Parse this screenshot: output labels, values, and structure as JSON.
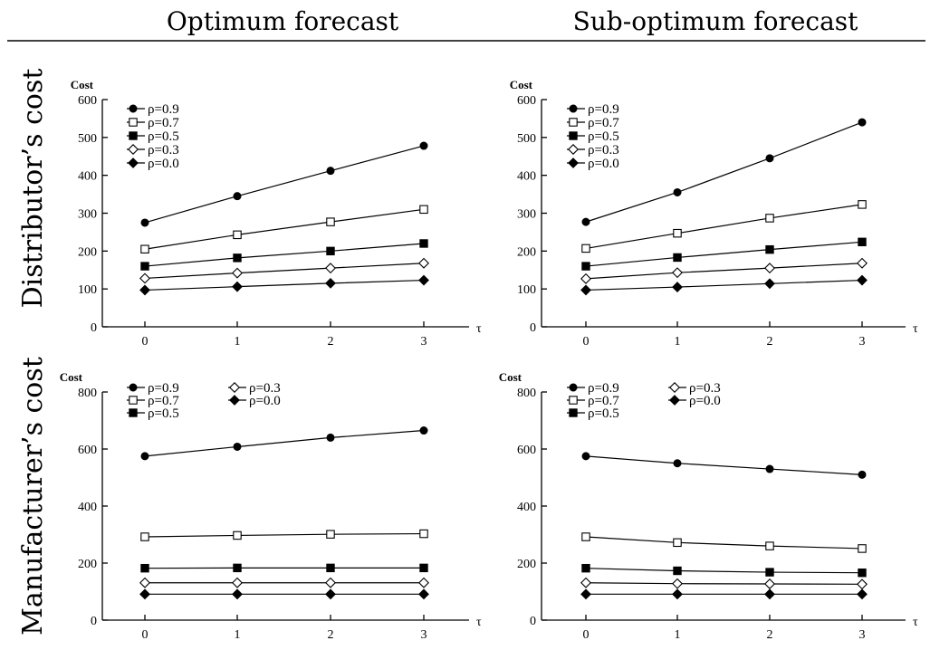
{
  "column_titles": [
    "Optimum forecast",
    "Sub-optimum forecast"
  ],
  "row_titles": [
    "Distributor’s cost",
    "Manufacturer’s cost"
  ],
  "chart_data": [
    {
      "type": "line",
      "panel": "distributor-optimum",
      "ylabel": "Cost",
      "xlabel": "τ",
      "ylim": [
        0,
        600
      ],
      "yticks": [
        0,
        100,
        200,
        300,
        400,
        500,
        600
      ],
      "x": [
        0,
        1,
        2,
        3
      ],
      "legend_placement": "top-left",
      "series": [
        {
          "name": "ρ=0.9",
          "marker": "filled-circle",
          "values": [
            275,
            345,
            412,
            478
          ]
        },
        {
          "name": "ρ=0.7",
          "marker": "open-square",
          "values": [
            205,
            243,
            277,
            310
          ]
        },
        {
          "name": "ρ=0.5",
          "marker": "filled-square",
          "values": [
            160,
            182,
            200,
            220
          ]
        },
        {
          "name": "ρ=0.3",
          "marker": "open-diamond",
          "values": [
            128,
            142,
            155,
            168
          ]
        },
        {
          "name": "ρ=0.0",
          "marker": "filled-diamond",
          "values": [
            97,
            106,
            115,
            123
          ]
        }
      ]
    },
    {
      "type": "line",
      "panel": "distributor-suboptimum",
      "ylabel": "Cost",
      "xlabel": "τ",
      "ylim": [
        0,
        600
      ],
      "yticks": [
        0,
        100,
        200,
        300,
        400,
        500,
        600
      ],
      "x": [
        0,
        1,
        2,
        3
      ],
      "legend_placement": "top-left",
      "series": [
        {
          "name": "ρ=0.9",
          "marker": "filled-circle",
          "values": [
            277,
            355,
            445,
            540
          ]
        },
        {
          "name": "ρ=0.7",
          "marker": "open-square",
          "values": [
            207,
            247,
            287,
            323
          ]
        },
        {
          "name": "ρ=0.5",
          "marker": "filled-square",
          "values": [
            160,
            183,
            204,
            224
          ]
        },
        {
          "name": "ρ=0.3",
          "marker": "open-diamond",
          "values": [
            127,
            143,
            155,
            168
          ]
        },
        {
          "name": "ρ=0.0",
          "marker": "filled-diamond",
          "values": [
            97,
            105,
            114,
            123
          ]
        }
      ]
    },
    {
      "type": "line",
      "panel": "manufacturer-optimum",
      "ylabel": "Cost",
      "xlabel": "τ",
      "ylim": [
        0,
        800
      ],
      "yticks": [
        0,
        200,
        400,
        600,
        800
      ],
      "x": [
        0,
        1,
        2,
        3
      ],
      "legend_placement": "top-left",
      "series": [
        {
          "name": "ρ=0.9",
          "marker": "filled-circle",
          "values": [
            575,
            608,
            640,
            665
          ]
        },
        {
          "name": "ρ=0.7",
          "marker": "open-square",
          "values": [
            292,
            297,
            301,
            303
          ]
        },
        {
          "name": "ρ=0.5",
          "marker": "filled-square",
          "values": [
            182,
            183,
            183,
            183
          ]
        },
        {
          "name": "ρ=0.3",
          "marker": "open-diamond",
          "values": [
            131,
            131,
            131,
            131
          ]
        },
        {
          "name": "ρ=0.0",
          "marker": "filled-diamond",
          "values": [
            91,
            91,
            91,
            91
          ]
        }
      ]
    },
    {
      "type": "line",
      "panel": "manufacturer-suboptimum",
      "ylabel": "Cost",
      "xlabel": "τ",
      "ylim": [
        0,
        800
      ],
      "yticks": [
        0,
        200,
        400,
        600,
        800
      ],
      "x": [
        0,
        1,
        2,
        3
      ],
      "legend_placement": "top-left",
      "series": [
        {
          "name": "ρ=0.9",
          "marker": "filled-circle",
          "values": [
            575,
            550,
            530,
            510
          ]
        },
        {
          "name": "ρ=0.7",
          "marker": "open-square",
          "values": [
            292,
            272,
            260,
            251
          ]
        },
        {
          "name": "ρ=0.5",
          "marker": "filled-square",
          "values": [
            182,
            173,
            168,
            166
          ]
        },
        {
          "name": "ρ=0.3",
          "marker": "open-diamond",
          "values": [
            131,
            128,
            127,
            126
          ]
        },
        {
          "name": "ρ=0.0",
          "marker": "filled-diamond",
          "values": [
            91,
            91,
            91,
            91
          ]
        }
      ]
    }
  ]
}
